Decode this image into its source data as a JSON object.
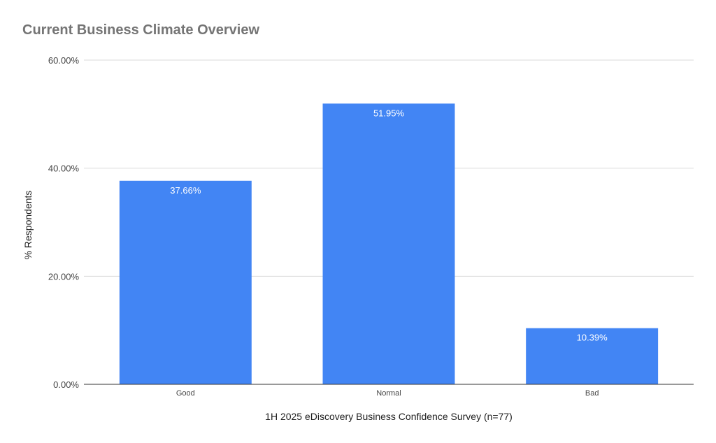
{
  "chart_data": {
    "type": "bar",
    "title": "Current Business Climate Overview",
    "categories": [
      "Good",
      "Normal",
      "Bad"
    ],
    "values": [
      37.66,
      51.95,
      10.39
    ],
    "data_labels": [
      "37.66%",
      "51.95%",
      "10.39%"
    ],
    "xlabel": "1H 2025 eDiscovery Business Confidence Survey (n=77)",
    "ylabel": "% Respondents",
    "ylim": [
      0,
      60
    ],
    "yticks": [
      0,
      20,
      40,
      60
    ],
    "ytick_labels": [
      "0.00%",
      "20.00%",
      "40.00%",
      "60.00%"
    ],
    "grid": true,
    "legend": "none",
    "bar_color": "#4285F4"
  }
}
